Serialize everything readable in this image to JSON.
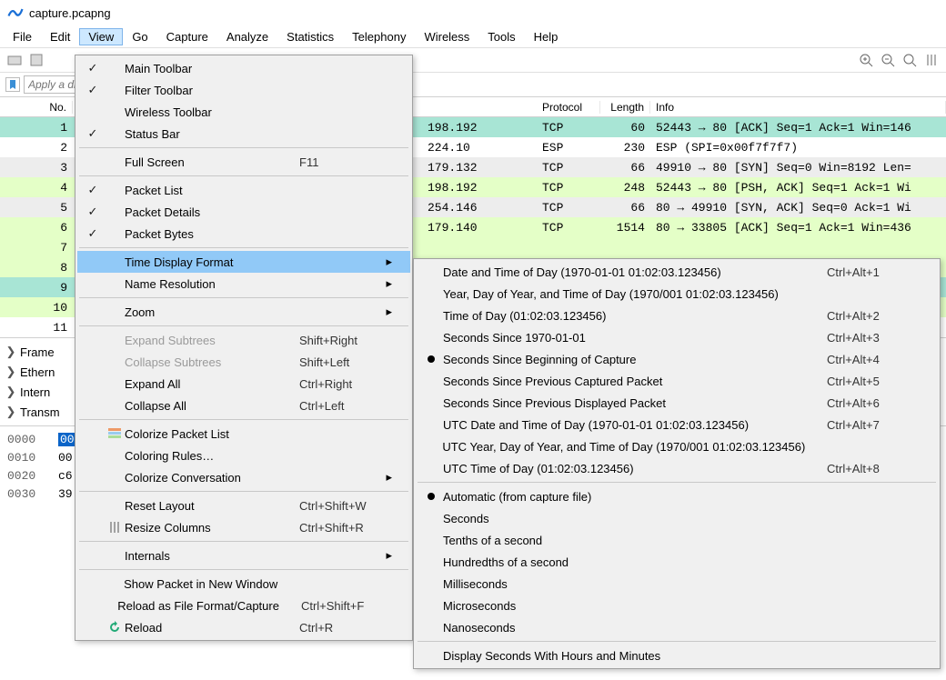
{
  "window": {
    "title": "capture.pcapng"
  },
  "menus": [
    "File",
    "Edit",
    "View",
    "Go",
    "Capture",
    "Analyze",
    "Statistics",
    "Telephony",
    "Wireless",
    "Tools",
    "Help"
  ],
  "active_menu": "View",
  "filter_placeholder": "Apply a di",
  "columns": {
    "no": "No.",
    "dst": "",
    "proto": "Protocol",
    "len": "Length",
    "info": "Info"
  },
  "packets": [
    {
      "no": "1",
      "dst": "198.192",
      "proto": "TCP",
      "len": "60",
      "info": "52443 → 80 [ACK] Seq=1 Ack=1 Win=146",
      "cls": "teal"
    },
    {
      "no": "2",
      "dst": "224.10",
      "proto": "ESP",
      "len": "230",
      "info": "ESP (SPI=0x00f7f7f7)",
      "cls": "white"
    },
    {
      "no": "3",
      "dst": "179.132",
      "proto": "TCP",
      "len": "66",
      "info": "49910 → 80 [SYN] Seq=0 Win=8192 Len=",
      "cls": "gray"
    },
    {
      "no": "4",
      "dst": "198.192",
      "proto": "TCP",
      "len": "248",
      "info": "52443 → 80 [PSH, ACK] Seq=1 Ack=1 Wi",
      "cls": "green"
    },
    {
      "no": "5",
      "dst": "254.146",
      "proto": "TCP",
      "len": "66",
      "info": "80 → 49910 [SYN, ACK] Seq=0 Ack=1 Wi",
      "cls": "gray"
    },
    {
      "no": "6",
      "dst": "179.140",
      "proto": "TCP",
      "len": "1514",
      "info": "80 → 33805 [ACK] Seq=1 Ack=1 Win=436",
      "cls": "green"
    },
    {
      "no": "7",
      "dst": "",
      "proto": "",
      "len": "",
      "info": "",
      "cls": "green"
    },
    {
      "no": "8",
      "dst": "",
      "proto": "",
      "len": "",
      "info": "",
      "cls": "green"
    },
    {
      "no": "9",
      "dst": "",
      "proto": "",
      "len": "",
      "info": "",
      "cls": "teal"
    },
    {
      "no": "10",
      "dst": "",
      "proto": "",
      "len": "",
      "info": "",
      "cls": "green"
    },
    {
      "no": "11",
      "dst": "",
      "proto": "",
      "len": "",
      "info": "",
      "cls": "white"
    }
  ],
  "view_menu": {
    "items": [
      {
        "type": "item",
        "check": true,
        "label": "Main Toolbar"
      },
      {
        "type": "item",
        "check": true,
        "label": "Filter Toolbar"
      },
      {
        "type": "item",
        "check": false,
        "label": "Wireless Toolbar"
      },
      {
        "type": "item",
        "check": true,
        "label": "Status Bar"
      },
      {
        "type": "sep"
      },
      {
        "type": "item",
        "label": "Full Screen",
        "accel": "F11"
      },
      {
        "type": "sep"
      },
      {
        "type": "item",
        "check": true,
        "label": "Packet List"
      },
      {
        "type": "item",
        "check": true,
        "label": "Packet Details"
      },
      {
        "type": "item",
        "check": true,
        "label": "Packet Bytes"
      },
      {
        "type": "sep"
      },
      {
        "type": "item",
        "label": "Time Display Format",
        "submenu": true,
        "highlight": true
      },
      {
        "type": "item",
        "label": "Name Resolution",
        "submenu": true
      },
      {
        "type": "sep"
      },
      {
        "type": "item",
        "label": "Zoom",
        "submenu": true
      },
      {
        "type": "sep"
      },
      {
        "type": "item",
        "label": "Expand Subtrees",
        "accel": "Shift+Right",
        "disabled": true
      },
      {
        "type": "item",
        "label": "Collapse Subtrees",
        "accel": "Shift+Left",
        "disabled": true
      },
      {
        "type": "item",
        "label": "Expand All",
        "accel": "Ctrl+Right"
      },
      {
        "type": "item",
        "label": "Collapse All",
        "accel": "Ctrl+Left"
      },
      {
        "type": "sep"
      },
      {
        "type": "item",
        "icon": "colorize",
        "label": "Colorize Packet List"
      },
      {
        "type": "item",
        "label": "Coloring Rules…"
      },
      {
        "type": "item",
        "label": "Colorize Conversation",
        "submenu": true
      },
      {
        "type": "sep"
      },
      {
        "type": "item",
        "label": "Reset Layout",
        "accel": "Ctrl+Shift+W"
      },
      {
        "type": "item",
        "icon": "resize",
        "label": "Resize Columns",
        "accel": "Ctrl+Shift+R"
      },
      {
        "type": "sep"
      },
      {
        "type": "item",
        "label": "Internals",
        "submenu": true
      },
      {
        "type": "sep"
      },
      {
        "type": "item",
        "label": "Show Packet in New Window"
      },
      {
        "type": "item",
        "label": "Reload as File Format/Capture",
        "accel": "Ctrl+Shift+F"
      },
      {
        "type": "item",
        "icon": "reload",
        "label": "Reload",
        "accel": "Ctrl+R"
      }
    ]
  },
  "time_submenu": {
    "items": [
      {
        "type": "item",
        "label": "Date and Time of Day (1970-01-01 01:02:03.123456)",
        "accel": "Ctrl+Alt+1"
      },
      {
        "type": "item",
        "label": "Year, Day of Year, and Time of Day (1970/001 01:02:03.123456)"
      },
      {
        "type": "item",
        "label": "Time of Day (01:02:03.123456)",
        "accel": "Ctrl+Alt+2"
      },
      {
        "type": "item",
        "label": "Seconds Since 1970-01-01",
        "accel": "Ctrl+Alt+3"
      },
      {
        "type": "item",
        "radio": true,
        "label": "Seconds Since Beginning of Capture",
        "accel": "Ctrl+Alt+4"
      },
      {
        "type": "item",
        "label": "Seconds Since Previous Captured Packet",
        "accel": "Ctrl+Alt+5"
      },
      {
        "type": "item",
        "label": "Seconds Since Previous Displayed Packet",
        "accel": "Ctrl+Alt+6"
      },
      {
        "type": "item",
        "label": "UTC Date and Time of Day (1970-01-01 01:02:03.123456)",
        "accel": "Ctrl+Alt+7"
      },
      {
        "type": "item",
        "label": "UTC Year, Day of Year, and Time of Day (1970/001 01:02:03.123456)"
      },
      {
        "type": "item",
        "label": "UTC Time of Day (01:02:03.123456)",
        "accel": "Ctrl+Alt+8"
      },
      {
        "type": "sep"
      },
      {
        "type": "item",
        "radio": true,
        "label": "Automatic (from capture file)"
      },
      {
        "type": "item",
        "label": "Seconds"
      },
      {
        "type": "item",
        "label": "Tenths of a second"
      },
      {
        "type": "item",
        "label": "Hundredths of a second"
      },
      {
        "type": "item",
        "label": "Milliseconds"
      },
      {
        "type": "item",
        "label": "Microseconds"
      },
      {
        "type": "item",
        "label": "Nanoseconds"
      },
      {
        "type": "sep"
      },
      {
        "type": "item",
        "label": "Display Seconds With Hours and Minutes"
      }
    ]
  },
  "details": [
    "Frame",
    "Ethern",
    "Intern",
    "Transm"
  ],
  "bytes": {
    "rows": [
      {
        "offset": "0000",
        "data": "00",
        "sel": true
      },
      {
        "offset": "0010",
        "data": "00"
      },
      {
        "offset": "0020",
        "data": "c6"
      },
      {
        "offset": "0030",
        "data": "39"
      }
    ]
  },
  "colors": {
    "highlight": "#91c9f7",
    "menu_active": "#cde8ff",
    "row_green": "#e4ffc7",
    "row_teal": "#a8e5d5",
    "row_gray": "#ededed"
  }
}
